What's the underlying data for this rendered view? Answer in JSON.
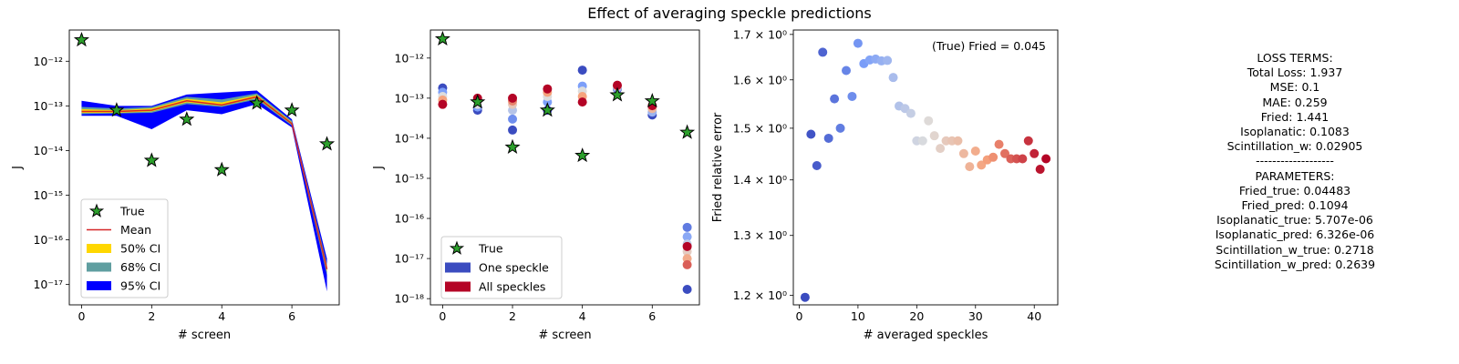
{
  "suptitle": "Effect of averaging speckle predictions",
  "colors": {
    "true_face": "#2ca02c",
    "mean_line": "#d62728",
    "ci50": "#ffd700",
    "ci68": "#5f9ea0",
    "ci95": "#0000ff",
    "one_speckle": "#3b4cc0",
    "all_speckles": "#b40426"
  },
  "chart_data": [
    {
      "type": "line",
      "title": "",
      "xlabel": "# screen",
      "ylabel": "J",
      "yscale": "log",
      "xlim": [
        -0.35,
        7.35
      ],
      "ylim": [
        3.5e-18,
        5e-12
      ],
      "xticks": [
        0,
        2,
        4,
        6
      ],
      "yticks": [
        "10⁻¹²",
        "10⁻¹³",
        "10⁻¹⁴",
        "10⁻¹⁵",
        "10⁻¹⁶",
        "10⁻¹⁷"
      ],
      "ytick_values": [
        1e-12,
        1e-13,
        1e-14,
        1e-15,
        1e-16,
        1e-17
      ],
      "x": [
        0,
        1,
        2,
        3,
        4,
        5,
        6,
        7
      ],
      "true": [
        3e-12,
        8e-14,
        6e-15,
        5e-14,
        3.7e-15,
        1.15e-13,
        8e-14,
        1.4e-14
      ],
      "mean": [
        7.5e-14,
        7.5e-14,
        8e-14,
        1.3e-13,
        1.05e-13,
        1.6e-13,
        4e-14,
        2.2e-17
      ],
      "ci50": {
        "low": [
          7e-14,
          7e-14,
          7.5e-14,
          1.2e-13,
          1e-13,
          1.5e-13,
          3.8e-14,
          1.9e-17
        ],
        "high": [
          8.5e-14,
          8e-14,
          8.8e-14,
          1.45e-13,
          1.2e-13,
          1.75e-13,
          4.3e-14,
          2.6e-17
        ]
      },
      "ci68": {
        "low": [
          6.5e-14,
          6.8e-14,
          7e-14,
          1.1e-13,
          9.5e-14,
          1.4e-13,
          3.6e-14,
          1.6e-17
        ],
        "high": [
          9.5e-14,
          8.8e-14,
          9.5e-14,
          1.6e-13,
          1.4e-13,
          1.9e-13,
          4.6e-14,
          2.9e-17
        ],
        "_": []
      },
      "ci95": {
        "low": [
          6e-14,
          6e-14,
          3e-14,
          8e-14,
          6.5e-14,
          1.1e-13,
          3.3e-14,
          7e-18
        ],
        "high": [
          1.3e-13,
          1e-13,
          1e-13,
          1.8e-13,
          2e-13,
          2.2e-13,
          5e-14,
          3.8e-17
        ]
      },
      "legend": {
        "placement": "lower-left",
        "entries": [
          "True",
          "Mean",
          "50% CI",
          "68% CI",
          "95% CI"
        ]
      }
    },
    {
      "type": "scatter",
      "title": "",
      "xlabel": "# screen",
      "ylabel": "J",
      "yscale": "log",
      "xlim": [
        -0.35,
        7.35
      ],
      "ylim": [
        7e-19,
        5e-12
      ],
      "xticks": [
        0,
        2,
        4,
        6
      ],
      "yticks": [
        "10⁻¹²",
        "10⁻¹³",
        "10⁻¹⁴",
        "10⁻¹⁵",
        "10⁻¹⁶",
        "10⁻¹⁷",
        "10⁻¹⁸"
      ],
      "ytick_values": [
        1e-12,
        1e-13,
        1e-14,
        1e-15,
        1e-16,
        1e-17,
        1e-18
      ],
      "true": [
        3e-12,
        8e-14,
        6e-15,
        5e-14,
        3.7e-15,
        1.2e-13,
        8.5e-14,
        1.4e-14
      ],
      "speckle_predictions": [
        {
          "x": 0,
          "values": [
            1.8e-13,
            1.4e-13,
            1.1e-13,
            9e-14,
            7e-14
          ]
        },
        {
          "x": 1,
          "values": [
            5e-14,
            6e-14,
            7e-14,
            9e-14,
            1e-13
          ]
        },
        {
          "x": 2,
          "values": [
            1.6e-14,
            3e-14,
            5e-14,
            7e-14,
            8.5e-14,
            1e-13
          ]
        },
        {
          "x": 3,
          "values": [
            5e-14,
            8e-14,
            1.1e-13,
            1.4e-13,
            1.7e-13
          ]
        },
        {
          "x": 4,
          "values": [
            5e-13,
            2e-13,
            1.5e-13,
            1.1e-13,
            8e-14
          ]
        },
        {
          "x": 5,
          "values": [
            1.7e-13,
            1.8e-13,
            2e-13,
            2.1e-13
          ]
        },
        {
          "x": 6,
          "values": [
            3.8e-14,
            4.5e-14,
            5.5e-14,
            6.5e-14
          ]
        },
        {
          "x": 7,
          "values": [
            1.7e-18,
            6e-17,
            3.5e-17,
            2.3e-17,
            1.5e-17,
            1e-17,
            7e-18,
            2e-17
          ]
        }
      ],
      "legend": {
        "placement": "lower-left",
        "entries": [
          "True",
          "One speckle",
          "All speckles"
        ]
      }
    },
    {
      "type": "scatter",
      "title": "",
      "xlabel": "# averaged speckles",
      "ylabel": "Fried relative error",
      "yscale": "log",
      "xlim": [
        -1,
        44
      ],
      "ylim": [
        1.185,
        1.71
      ],
      "xticks": [
        0,
        10,
        20,
        30,
        40
      ],
      "yticks": [
        "1.2 × 10⁰",
        "1.3 × 10⁰",
        "1.4 × 10⁰",
        "1.5 × 10⁰",
        "1.6 × 10⁰",
        "1.7 × 10⁰"
      ],
      "ytick_values": [
        1.2,
        1.3,
        1.4,
        1.5,
        1.6,
        1.7
      ],
      "annotation": "(True) Fried = 0.045",
      "x": [
        1,
        2,
        3,
        4,
        5,
        6,
        7,
        8,
        9,
        10,
        11,
        12,
        13,
        14,
        15,
        16,
        17,
        18,
        19,
        20,
        21,
        22,
        23,
        24,
        25,
        26,
        27,
        28,
        29,
        30,
        31,
        32,
        33,
        34,
        35,
        36,
        37,
        38,
        39,
        40,
        41,
        42
      ],
      "y": [
        1.197,
        1.488,
        1.427,
        1.66,
        1.48,
        1.56,
        1.5,
        1.62,
        1.565,
        1.68,
        1.635,
        1.643,
        1.645,
        1.641,
        1.642,
        1.605,
        1.545,
        1.54,
        1.53,
        1.475,
        1.475,
        1.515,
        1.485,
        1.46,
        1.475,
        1.475,
        1.475,
        1.45,
        1.425,
        1.455,
        1.428,
        1.438,
        1.443,
        1.468,
        1.45,
        1.44,
        1.44,
        1.44,
        1.475,
        1.45,
        1.42,
        1.44
      ]
    }
  ],
  "loss_panel": {
    "lines": [
      "LOSS TERMS:",
      "Total Loss: 1.937",
      "MSE: 0.1",
      "MAE: 0.259",
      "Fried: 1.441",
      "Isoplanatic: 0.1083",
      "Scintillation_w: 0.02905",
      "-------------------",
      "PARAMETERS:",
      "Fried_true: 0.04483",
      "Fried_pred: 0.1094",
      "Isoplanatic_true: 5.707e-06",
      "Isoplanatic_pred: 6.326e-06",
      "Scintillation_w_true: 0.2718",
      "Scintillation_w_pred: 0.2639"
    ]
  }
}
